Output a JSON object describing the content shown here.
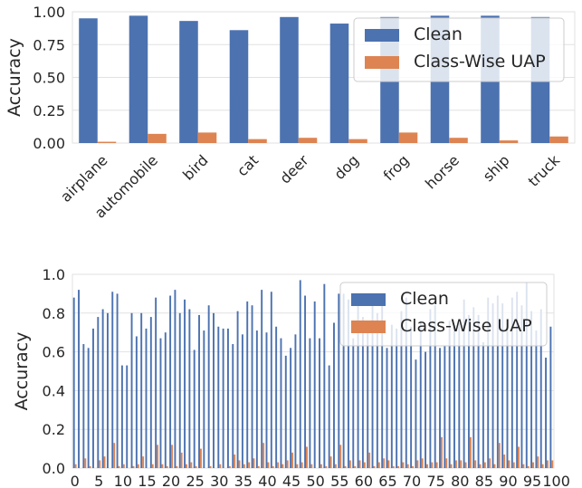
{
  "chart_data": [
    {
      "type": "bar",
      "ylabel": "Accuracy",
      "ylim": [
        0,
        1.0
      ],
      "yticks": [
        "0.00",
        "0.25",
        "0.50",
        "0.75",
        "1.00"
      ],
      "ytick_values": [
        0,
        0.25,
        0.5,
        0.75,
        1.0
      ],
      "grid": true,
      "legend_position": "top-right",
      "categories": [
        "airplane",
        "automobile",
        "bird",
        "cat",
        "deer",
        "dog",
        "frog",
        "horse",
        "ship",
        "truck"
      ],
      "series": [
        {
          "name": "Clean",
          "color": "#4c72b0",
          "values": [
            0.95,
            0.97,
            0.93,
            0.86,
            0.96,
            0.91,
            0.96,
            0.97,
            0.97,
            0.96
          ]
        },
        {
          "name": "Class-Wise UAP",
          "color": "#dd8452",
          "values": [
            0.01,
            0.07,
            0.08,
            0.03,
            0.04,
            0.03,
            0.08,
            0.04,
            0.02,
            0.05
          ]
        }
      ]
    },
    {
      "type": "bar",
      "ylabel": "Accuracy",
      "ylim": [
        0,
        1.0
      ],
      "yticks": [
        "0.0",
        "0.2",
        "0.4",
        "0.6",
        "0.8",
        "1.0"
      ],
      "ytick_values": [
        0,
        0.2,
        0.4,
        0.6,
        0.8,
        1.0
      ],
      "grid": true,
      "legend_position": "top-right",
      "x_tick_values": [
        0,
        5,
        10,
        15,
        20,
        25,
        30,
        35,
        40,
        45,
        50,
        55,
        60,
        65,
        70,
        75,
        80,
        85,
        90,
        95,
        100
      ],
      "x_tick_labels": [
        "0",
        "5",
        "10",
        "15",
        "20",
        "25",
        "30",
        "35",
        "40",
        "45",
        "50",
        "55",
        "60",
        "65",
        "70",
        "75",
        "80",
        "85",
        "90",
        "95",
        "100"
      ],
      "x_count": 100,
      "series": [
        {
          "name": "Clean",
          "color": "#4c72b0",
          "values": [
            0.88,
            0.92,
            0.64,
            0.62,
            0.72,
            0.78,
            0.82,
            0.8,
            0.91,
            0.9,
            0.53,
            0.53,
            0.8,
            0.68,
            0.8,
            0.72,
            0.78,
            0.88,
            0.67,
            0.7,
            0.89,
            0.92,
            0.8,
            0.87,
            0.82,
            0.61,
            0.79,
            0.71,
            0.84,
            0.8,
            0.73,
            0.72,
            0.72,
            0.64,
            0.81,
            0.69,
            0.86,
            0.84,
            0.71,
            0.92,
            0.7,
            0.91,
            0.73,
            0.67,
            0.58,
            0.62,
            0.69,
            0.97,
            0.89,
            0.67,
            0.86,
            0.67,
            0.95,
            0.53,
            0.75,
            0.9,
            0.9,
            0.87,
            0.67,
            0.86,
            0.78,
            0.76,
            0.87,
            0.8,
            0.85,
            0.62,
            0.74,
            0.72,
            0.81,
            0.88,
            0.73,
            0.56,
            0.76,
            0.6,
            0.82,
            0.84,
            0.62,
            0.63,
            0.76,
            0.74,
            0.75,
            0.87,
            0.79,
            0.83,
            0.79,
            0.65,
            0.88,
            0.85,
            0.89,
            0.85,
            0.72,
            0.88,
            0.91,
            0.84,
            0.96,
            0.81,
            0.71,
            0.82,
            0.57,
            0.73
          ]
        },
        {
          "name": "Class-Wise UAP",
          "color": "#dd8452",
          "values": [
            0.02,
            0.0,
            0.05,
            0.01,
            0.0,
            0.04,
            0.06,
            0.0,
            0.13,
            0.01,
            0.02,
            0.0,
            0.01,
            0.02,
            0.06,
            0.0,
            0.02,
            0.12,
            0.02,
            0.01,
            0.12,
            0.01,
            0.08,
            0.02,
            0.03,
            0.01,
            0.1,
            0.0,
            0.01,
            0.0,
            0.02,
            0.0,
            0.01,
            0.07,
            0.04,
            0.02,
            0.03,
            0.05,
            0.01,
            0.13,
            0.03,
            0.01,
            0.03,
            0.02,
            0.04,
            0.08,
            0.02,
            0.03,
            0.11,
            0.02,
            0.0,
            0.02,
            0.01,
            0.06,
            0.02,
            0.12,
            0.01,
            0.04,
            0.01,
            0.04,
            0.03,
            0.08,
            0.01,
            0.03,
            0.05,
            0.04,
            0.01,
            0.01,
            0.03,
            0.02,
            0.01,
            0.04,
            0.05,
            0.02,
            0.03,
            0.03,
            0.16,
            0.05,
            0.02,
            0.04,
            0.04,
            0.03,
            0.16,
            0.04,
            0.02,
            0.03,
            0.05,
            0.02,
            0.13,
            0.07,
            0.04,
            0.03,
            0.11,
            0.02,
            0.01,
            0.03,
            0.06,
            0.02,
            0.04,
            0.04
          ]
        }
      ]
    }
  ]
}
